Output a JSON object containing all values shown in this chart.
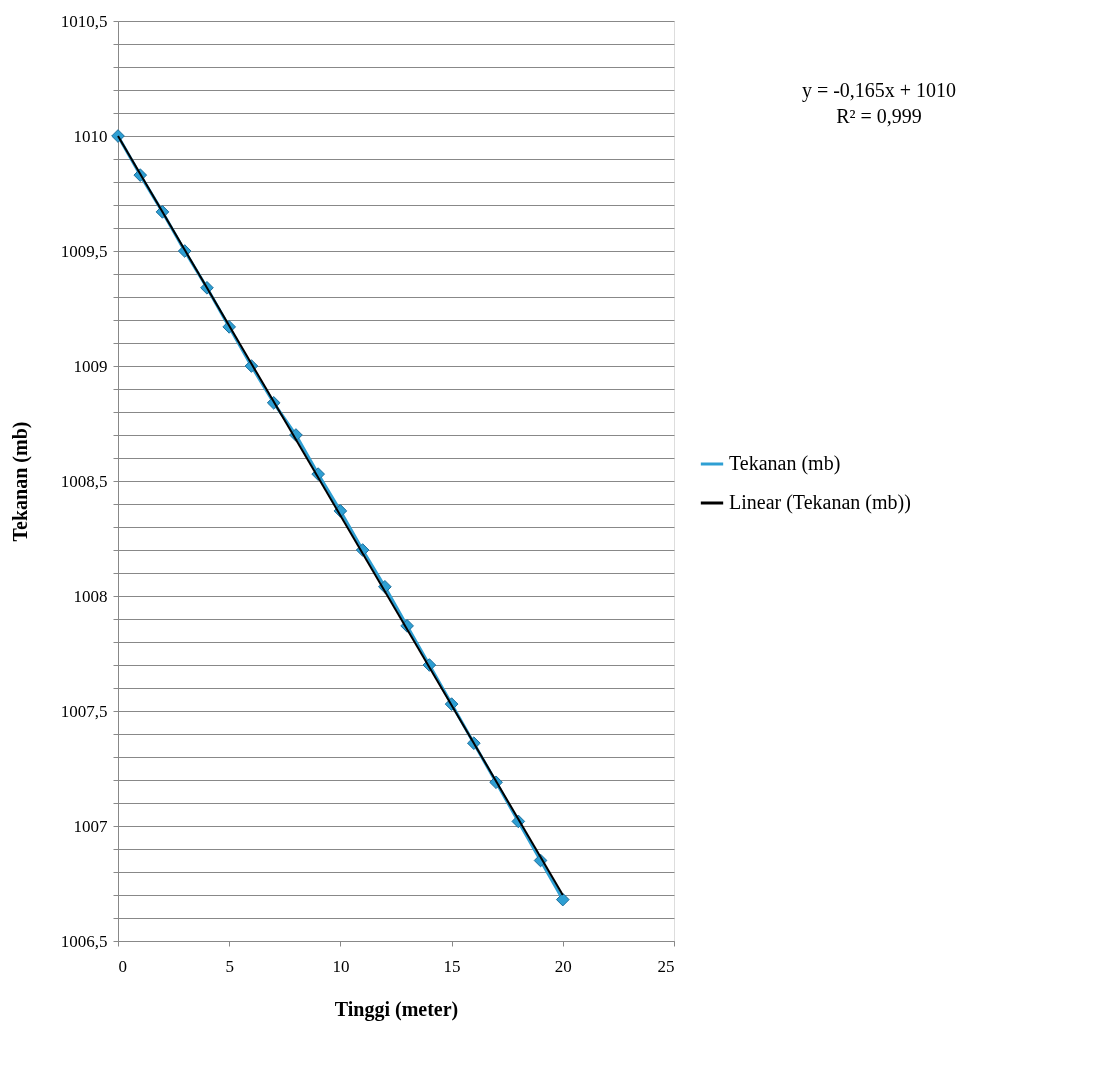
{
  "chart_data": {
    "type": "line",
    "xlabel": "Tinggi (meter)",
    "ylabel": "Tekanan (mb)",
    "xlim": [
      0,
      25
    ],
    "xticks": [
      0,
      5,
      10,
      15,
      20,
      25
    ],
    "ylim": [
      1006.5,
      1010.5
    ],
    "yticks": [
      {
        "value": 1006.5,
        "label": "1006,5"
      },
      {
        "value": 1006.6,
        "label": null
      },
      {
        "value": 1006.7,
        "label": null
      },
      {
        "value": 1006.8,
        "label": null
      },
      {
        "value": 1006.9,
        "label": null
      },
      {
        "value": 1007,
        "label": "1007"
      },
      {
        "value": 1007.1,
        "label": null
      },
      {
        "value": 1007.2,
        "label": null
      },
      {
        "value": 1007.3,
        "label": null
      },
      {
        "value": 1007.4,
        "label": null
      },
      {
        "value": 1007.5,
        "label": "1007,5"
      },
      {
        "value": 1007.6,
        "label": null
      },
      {
        "value": 1007.7,
        "label": null
      },
      {
        "value": 1007.8,
        "label": null
      },
      {
        "value": 1007.9,
        "label": null
      },
      {
        "value": 1008,
        "label": "1008"
      },
      {
        "value": 1008.1,
        "label": null
      },
      {
        "value": 1008.2,
        "label": null
      },
      {
        "value": 1008.3,
        "label": null
      },
      {
        "value": 1008.4,
        "label": null
      },
      {
        "value": 1008.5,
        "label": "1008,5"
      },
      {
        "value": 1008.6,
        "label": null
      },
      {
        "value": 1008.7,
        "label": null
      },
      {
        "value": 1008.8,
        "label": null
      },
      {
        "value": 1008.9,
        "label": null
      },
      {
        "value": 1009,
        "label": "1009"
      },
      {
        "value": 1009.1,
        "label": null
      },
      {
        "value": 1009.2,
        "label": null
      },
      {
        "value": 1009.3,
        "label": null
      },
      {
        "value": 1009.4,
        "label": null
      },
      {
        "value": 1009.5,
        "label": "1009,5"
      },
      {
        "value": 1009.6,
        "label": null
      },
      {
        "value": 1009.7,
        "label": null
      },
      {
        "value": 1009.8,
        "label": null
      },
      {
        "value": 1009.9,
        "label": null
      },
      {
        "value": 1010,
        "label": "1010"
      },
      {
        "value": 1010.1,
        "label": null
      },
      {
        "value": 1010.2,
        "label": null
      },
      {
        "value": 1010.3,
        "label": null
      },
      {
        "value": 1010.4,
        "label": null
      },
      {
        "value": 1010.5,
        "label": "1010,5"
      }
    ],
    "grid": "y",
    "legend": "right",
    "annotations": [
      "y = -0,165x + 1010",
      "R² = 0,999"
    ],
    "series": [
      {
        "name": "Tekanan (mb)",
        "type": "line",
        "line_style": "solid",
        "marker": "diamond",
        "color": "#2e9fd3",
        "x": [
          0,
          1,
          2,
          3,
          4,
          5,
          6,
          7,
          8,
          9,
          10,
          11,
          12,
          13,
          14,
          15,
          16,
          17,
          18,
          19,
          20
        ],
        "values": [
          1010.0,
          1009.83,
          1009.67,
          1009.5,
          1009.34,
          1009.17,
          1009.0,
          1008.84,
          1008.7,
          1008.53,
          1008.37,
          1008.2,
          1008.04,
          1007.87,
          1007.7,
          1007.53,
          1007.36,
          1007.19,
          1007.02,
          1006.85,
          1006.68
        ]
      },
      {
        "name": "Linear (Tekanan (mb))",
        "type": "line",
        "line_style": "solid",
        "marker": "none",
        "color": "#000000",
        "x": [
          0,
          20
        ],
        "values": [
          1010,
          1006.7
        ]
      }
    ]
  }
}
